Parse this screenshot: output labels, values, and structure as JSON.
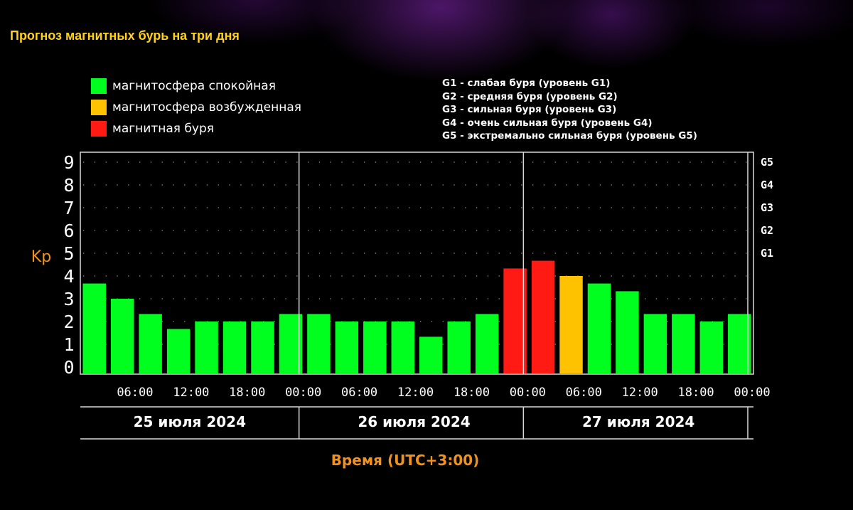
{
  "title": "Прогноз магнитных бурь на три дня",
  "legend": [
    {
      "label": "магнитосфера спокойная",
      "color": "#00ff1e"
    },
    {
      "label": "магнитосфера возбужденная",
      "color": "#ffc200"
    },
    {
      "label": "магнитная буря",
      "color": "#ff1a14"
    }
  ],
  "g_levels": [
    "G1 - слабая буря (уровень G1)",
    "G2 - средняя буря (уровень G2)",
    "G3 - сильная буря (уровень G3)",
    "G4 - очень сильная буря (уровень G4)",
    "G5 - экстремально сильная буря (уровень G5)"
  ],
  "chart_data": {
    "type": "bar",
    "ylabel": "Kp",
    "xlabel": "Время (UTC+3:00)",
    "ylim": [
      0,
      9
    ],
    "yticks": [
      "0",
      "1",
      "2",
      "3",
      "4",
      "5",
      "6",
      "7",
      "8",
      "9"
    ],
    "right_ticks": [
      {
        "value": 5,
        "label": "G1"
      },
      {
        "value": 6,
        "label": "G2"
      },
      {
        "value": 7,
        "label": "G3"
      },
      {
        "value": 8,
        "label": "G4"
      },
      {
        "value": 9,
        "label": "G5"
      }
    ],
    "x_tick_labels": [
      "06:00",
      "12:00",
      "18:00",
      "00:00",
      "06:00",
      "12:00",
      "18:00",
      "00:00",
      "06:00",
      "12:00",
      "18:00",
      "00:00"
    ],
    "days": [
      "25 июля 2024",
      "26 июля 2024",
      "27 июля 2024"
    ],
    "grid": "dotted",
    "values": [
      3.67,
      3.0,
      2.33,
      1.67,
      2.0,
      2.0,
      2.0,
      2.33,
      2.33,
      2.0,
      2.0,
      2.0,
      1.33,
      2.0,
      2.33,
      4.33,
      4.67,
      4.0,
      3.67,
      3.33,
      2.33,
      2.33,
      2.0,
      2.33
    ],
    "levels": [
      "quiet",
      "quiet",
      "quiet",
      "quiet",
      "quiet",
      "quiet",
      "quiet",
      "quiet",
      "quiet",
      "quiet",
      "quiet",
      "quiet",
      "quiet",
      "quiet",
      "quiet",
      "storm",
      "storm",
      "active",
      "quiet",
      "quiet",
      "quiet",
      "quiet",
      "quiet",
      "quiet"
    ],
    "colors": {
      "quiet": "#00ff1e",
      "active": "#ffc200",
      "storm": "#ff1a14"
    }
  }
}
